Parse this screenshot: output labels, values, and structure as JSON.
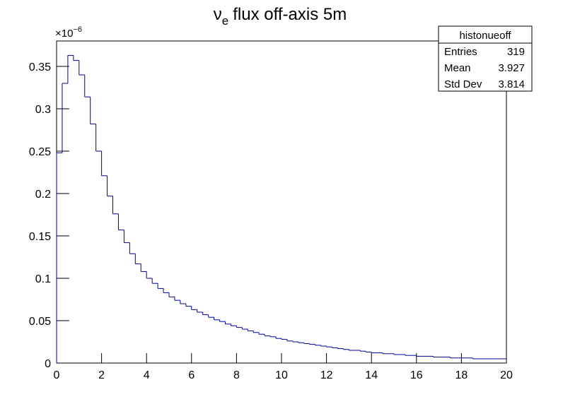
{
  "chart_data": {
    "type": "histogram",
    "title": {
      "symbol": "ν",
      "subscript": "e",
      "text": "flux off-axis 5m"
    },
    "y_multiplier": {
      "base": "×10",
      "exponent": "−6"
    },
    "color": "#000099",
    "bins": [
      0,
      0.25,
      0.5,
      0.75,
      1,
      1.25,
      1.5,
      1.75,
      2,
      2.25,
      2.5,
      2.75,
      3,
      3.25,
      3.5,
      3.75,
      4,
      4.25,
      4.5,
      4.75,
      5,
      5.25,
      5.5,
      5.75,
      6,
      6.25,
      6.5,
      6.75,
      7,
      7.25,
      7.5,
      7.75,
      8,
      8.25,
      8.5,
      8.75,
      9,
      9.25,
      9.5,
      9.75,
      10,
      10.25,
      10.5,
      10.75,
      11,
      11.25,
      11.5,
      11.75,
      12,
      12.25,
      12.5,
      12.75,
      13,
      13.25,
      13.5,
      13.75,
      14,
      14.25,
      14.5,
      14.75,
      15,
      15.25,
      15.5,
      15.75,
      16,
      16.25,
      16.5,
      16.75,
      17,
      17.25,
      17.5,
      17.75,
      18,
      18.25,
      18.5,
      18.75,
      19,
      19.25,
      19.5,
      19.75,
      20
    ],
    "values": [
      0.248,
      0.33,
      0.363,
      0.357,
      0.34,
      0.314,
      0.282,
      0.25,
      0.221,
      0.197,
      0.176,
      0.157,
      0.142,
      0.129,
      0.117,
      0.108,
      0.1,
      0.094,
      0.088,
      0.083,
      0.078,
      0.074,
      0.07,
      0.067,
      0.063,
      0.06,
      0.057,
      0.054,
      0.051,
      0.049,
      0.046,
      0.044,
      0.042,
      0.04,
      0.038,
      0.036,
      0.034,
      0.032,
      0.031,
      0.029,
      0.028,
      0.026,
      0.025,
      0.024,
      0.023,
      0.022,
      0.021,
      0.02,
      0.019,
      0.018,
      0.017,
      0.016,
      0.015,
      0.015,
      0.014,
      0.013,
      0.012,
      0.012,
      0.011,
      0.011,
      0.01,
      0.01,
      0.009,
      0.009,
      0.008,
      0.008,
      0.008,
      0.007,
      0.007,
      0.007,
      0.006,
      0.006,
      0.006,
      0.006,
      0.005,
      0.005,
      0.005,
      0.005,
      0.005,
      0.005
    ],
    "xlim": [
      0,
      20
    ],
    "xticks": [
      0,
      2,
      4,
      6,
      8,
      10,
      12,
      14,
      16,
      18,
      20
    ],
    "ylim": [
      0,
      0.38
    ],
    "yticks": [
      0,
      0.05,
      0.1,
      0.15,
      0.2,
      0.25,
      0.3,
      0.35
    ],
    "stats": {
      "name": "histonueoff",
      "rows": [
        [
          "Entries",
          319
        ],
        [
          "Mean",
          3.927
        ],
        [
          "Std Dev",
          3.814
        ]
      ]
    }
  }
}
